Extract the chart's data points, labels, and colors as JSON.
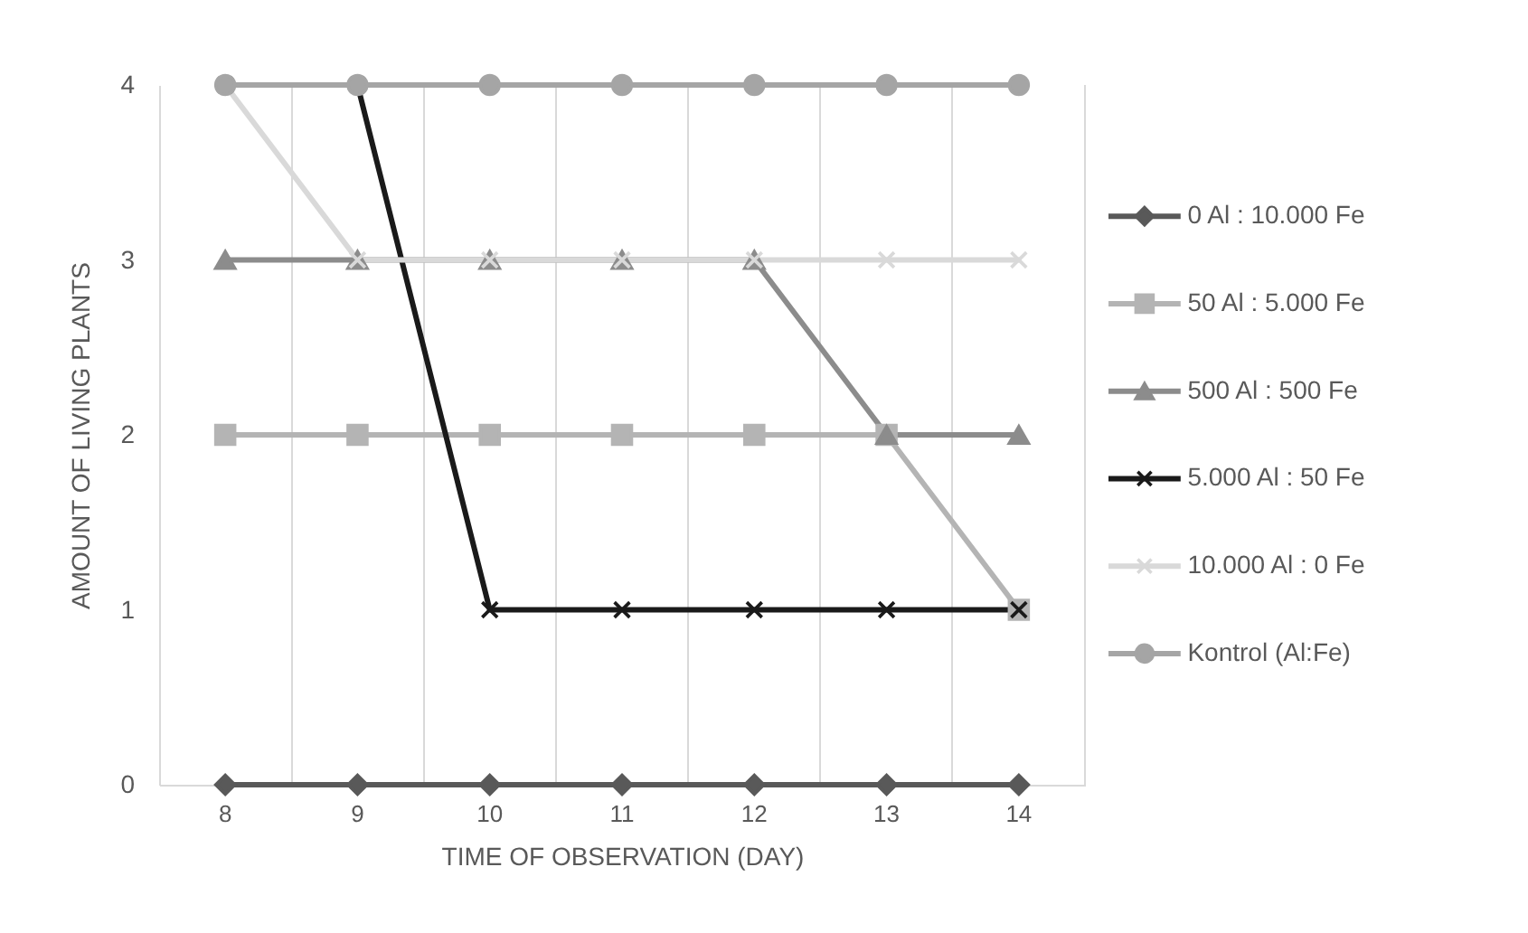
{
  "chart_data": {
    "type": "line",
    "xlabel": "TIME OF OBSERVATION (DAY)",
    "ylabel": "AMOUNT OF LIVING PLANTS",
    "categories": [
      "8",
      "9",
      "10",
      "11",
      "12",
      "13",
      "14"
    ],
    "ylim": [
      0,
      4
    ],
    "yticks": [
      0,
      1,
      2,
      3,
      4
    ],
    "grid": "x",
    "legend": "right",
    "line_style": "solid",
    "series": [
      {
        "name": "0 Al : 10.000 Fe",
        "color": "#595959",
        "marker": "diamond",
        "values": [
          0,
          0,
          0,
          0,
          0,
          0,
          0
        ]
      },
      {
        "name": "50 Al : 5.000 Fe",
        "color": "#b4b4b4",
        "marker": "square",
        "values": [
          2,
          2,
          2,
          2,
          2,
          2,
          1
        ]
      },
      {
        "name": "500 Al : 500 Fe",
        "color": "#8c8c8c",
        "marker": "triangle",
        "values": [
          3,
          3,
          3,
          3,
          3,
          2,
          2
        ]
      },
      {
        "name": "5.000 Al : 50 Fe",
        "color": "#1a1a1a",
        "marker": "cross",
        "values": [
          4,
          4,
          1,
          1,
          1,
          1,
          1
        ]
      },
      {
        "name": "10.000 Al : 0 Fe",
        "color": "#d9d9d9",
        "marker": "cross",
        "values": [
          4,
          3,
          3,
          3,
          3,
          3,
          3
        ]
      },
      {
        "name": "Kontrol (Al:Fe)",
        "color": "#a5a5a5",
        "marker": "circle",
        "values": [
          4,
          4,
          4,
          4,
          4,
          4,
          4
        ]
      }
    ]
  }
}
